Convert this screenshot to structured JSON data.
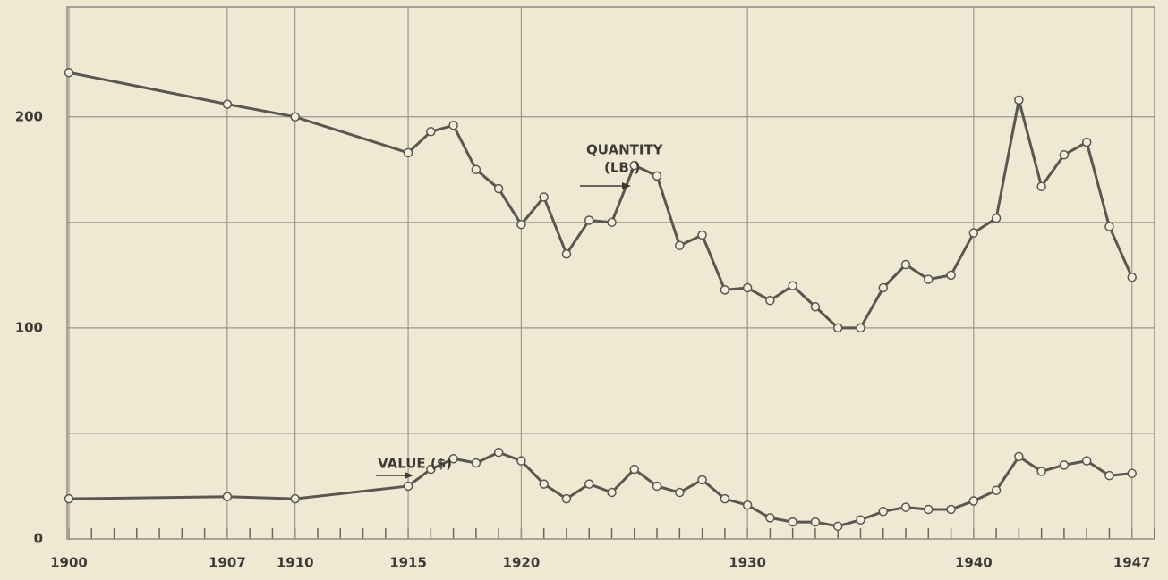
{
  "chart_data": {
    "type": "line",
    "x": [
      1900,
      1907,
      1910,
      1915,
      1916,
      1917,
      1918,
      1919,
      1920,
      1921,
      1922,
      1923,
      1924,
      1925,
      1926,
      1927,
      1928,
      1929,
      1930,
      1931,
      1932,
      1933,
      1934,
      1935,
      1936,
      1937,
      1938,
      1939,
      1940,
      1941,
      1942,
      1943,
      1944,
      1945,
      1946,
      1947
    ],
    "series": [
      {
        "name": "QUANTITY (LB.)",
        "color": "#5a5650",
        "values": [
          221,
          206,
          200,
          183,
          193,
          196,
          175,
          166,
          149,
          162,
          135,
          151,
          150,
          177,
          172,
          139,
          144,
          118,
          119,
          113,
          120,
          110,
          100,
          100,
          119,
          130,
          123,
          125,
          145,
          152,
          208,
          167,
          182,
          188,
          148,
          124
        ]
      },
      {
        "name": "VALUE ($)",
        "color": "#5a5650",
        "values": [
          19,
          20,
          19,
          25,
          33,
          38,
          36,
          41,
          37,
          26,
          19,
          26,
          22,
          33,
          25,
          22,
          28,
          19,
          16,
          10,
          8,
          8,
          6,
          9,
          13,
          15,
          14,
          14,
          18,
          23,
          39,
          32,
          35,
          37,
          30,
          31
        ]
      }
    ],
    "annotations": [
      {
        "lines": [
          "QUANTITY",
          "(LB.)"
        ],
        "series": 0
      },
      {
        "lines": [
          "VALUE ($)"
        ],
        "series": 1
      }
    ],
    "xlim": [
      1900,
      1948
    ],
    "xticks": [
      1900,
      1907,
      1910,
      1915,
      1920,
      1930,
      1940,
      1947
    ],
    "ylim": [
      0,
      252
    ],
    "yticks": [
      0,
      100,
      200
    ],
    "minor_yticks": [
      50,
      150
    ],
    "grid": true
  }
}
